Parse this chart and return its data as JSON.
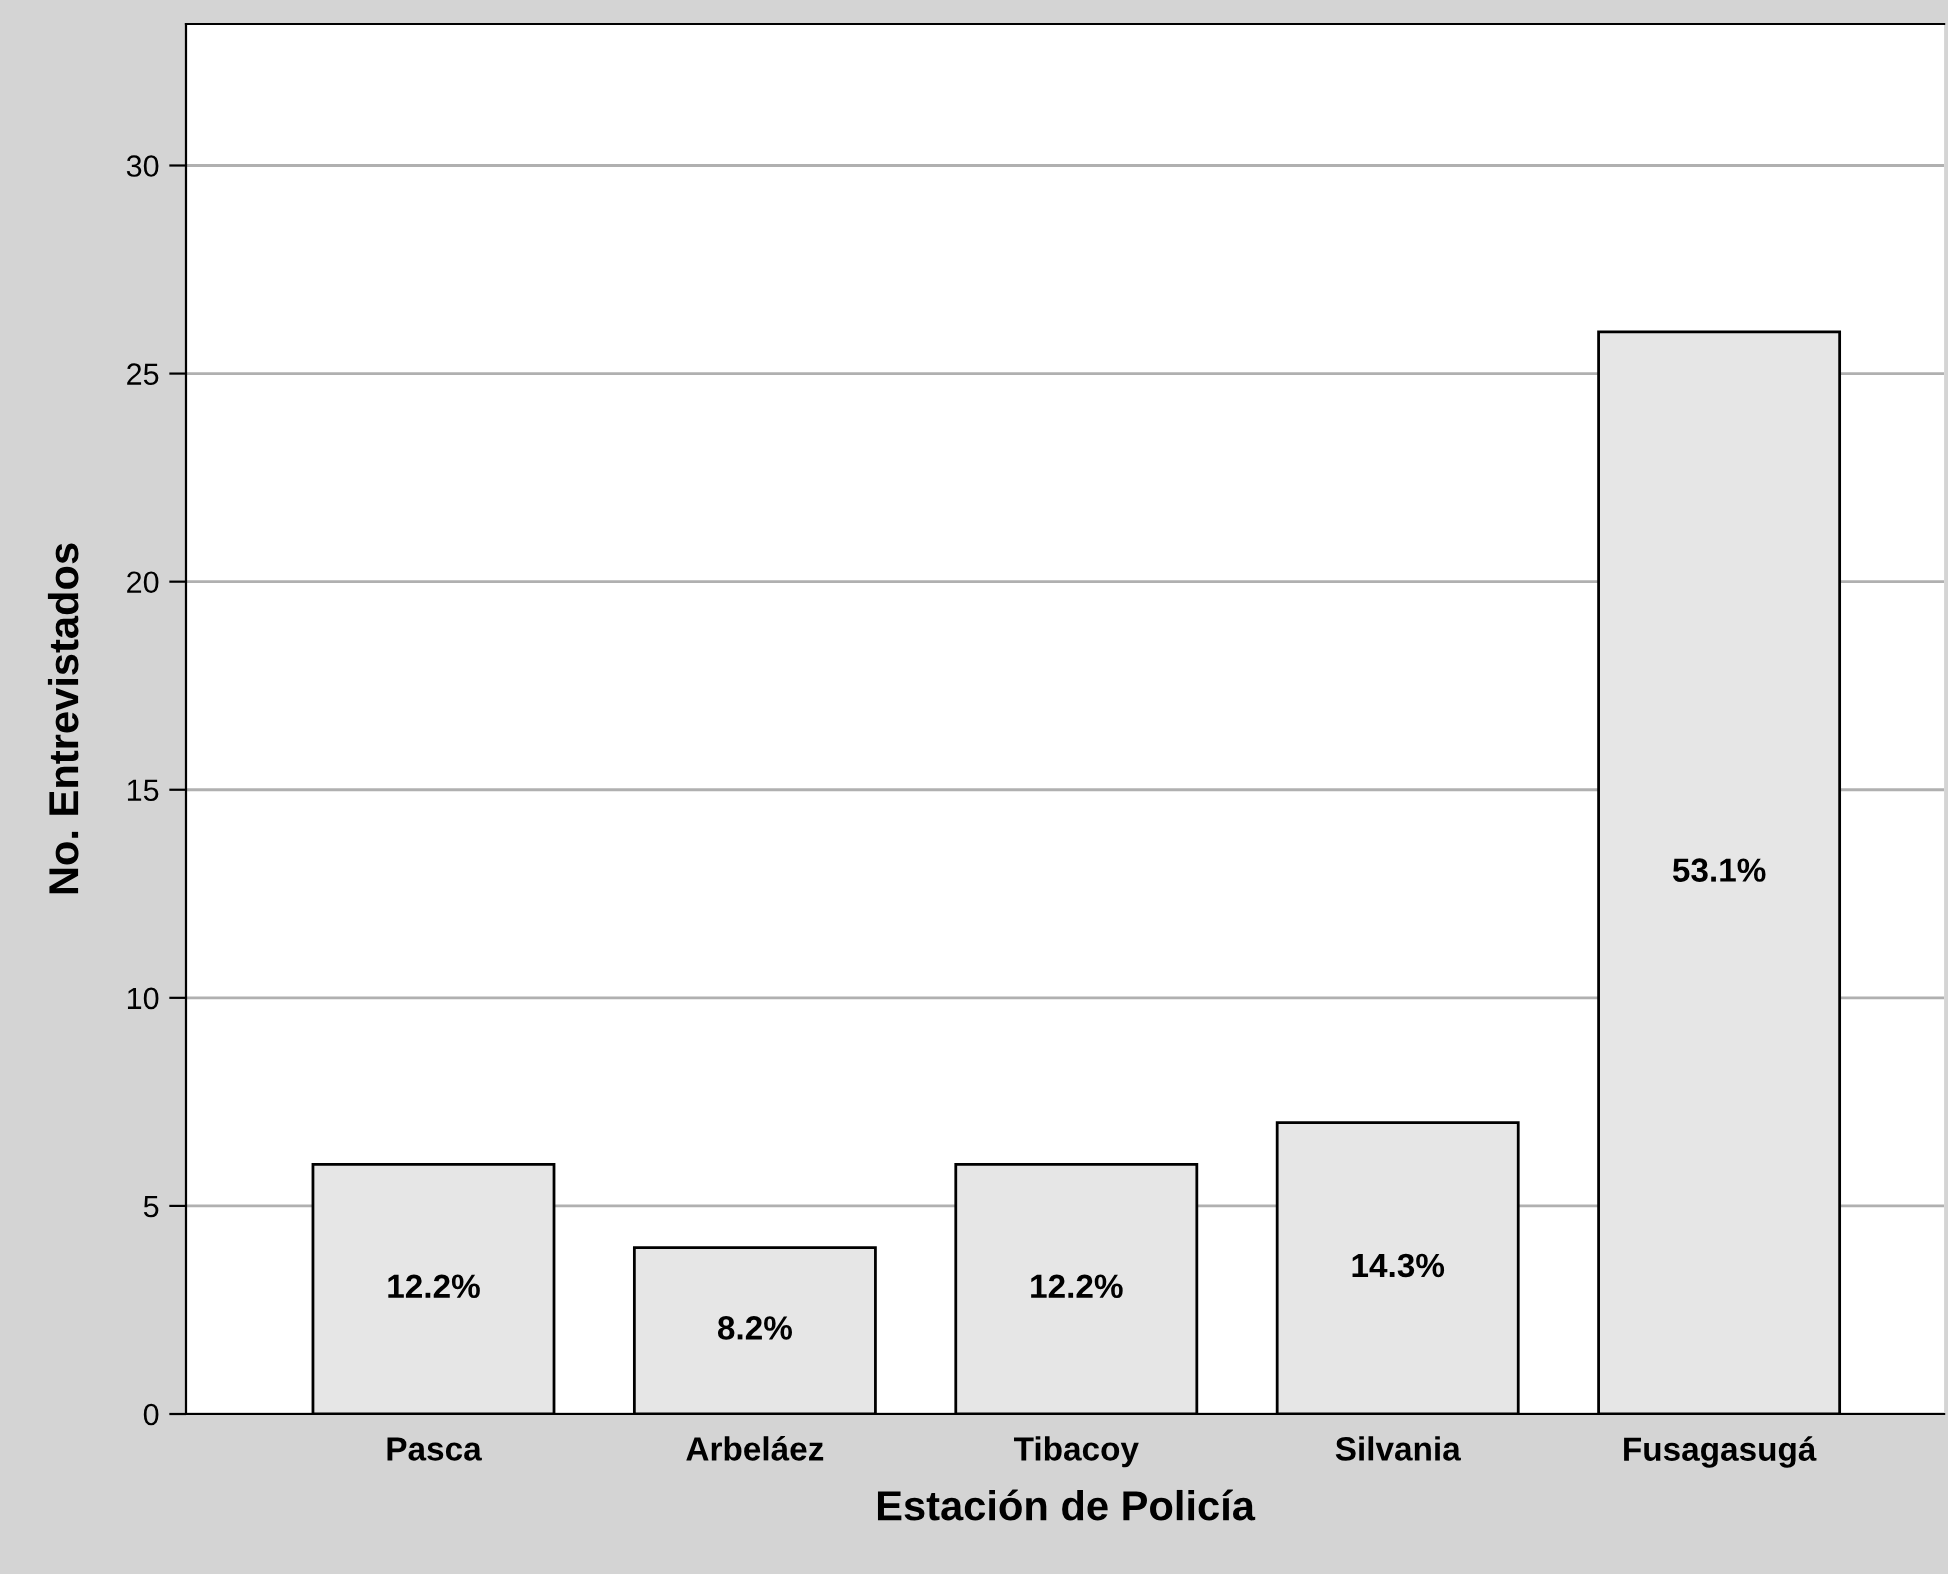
{
  "chart_data": {
    "type": "bar",
    "xlabel": "Estación de Policía",
    "ylabel": "No. Entrevistados",
    "categories": [
      "Pasca",
      "Arbeláez",
      "Tibacoy",
      "Silvania",
      "Fusagasugá"
    ],
    "values": [
      6,
      4,
      6,
      7,
      26
    ],
    "annotations": [
      "12.2%",
      "8.2%",
      "12.2%",
      "14.3%",
      "53.1%"
    ],
    "color": "#e6e6e6",
    "ylim": [
      0,
      33.4
    ],
    "yticks": [
      0,
      5,
      10,
      15,
      20,
      25,
      30
    ],
    "grid": "y",
    "legend": false
  }
}
